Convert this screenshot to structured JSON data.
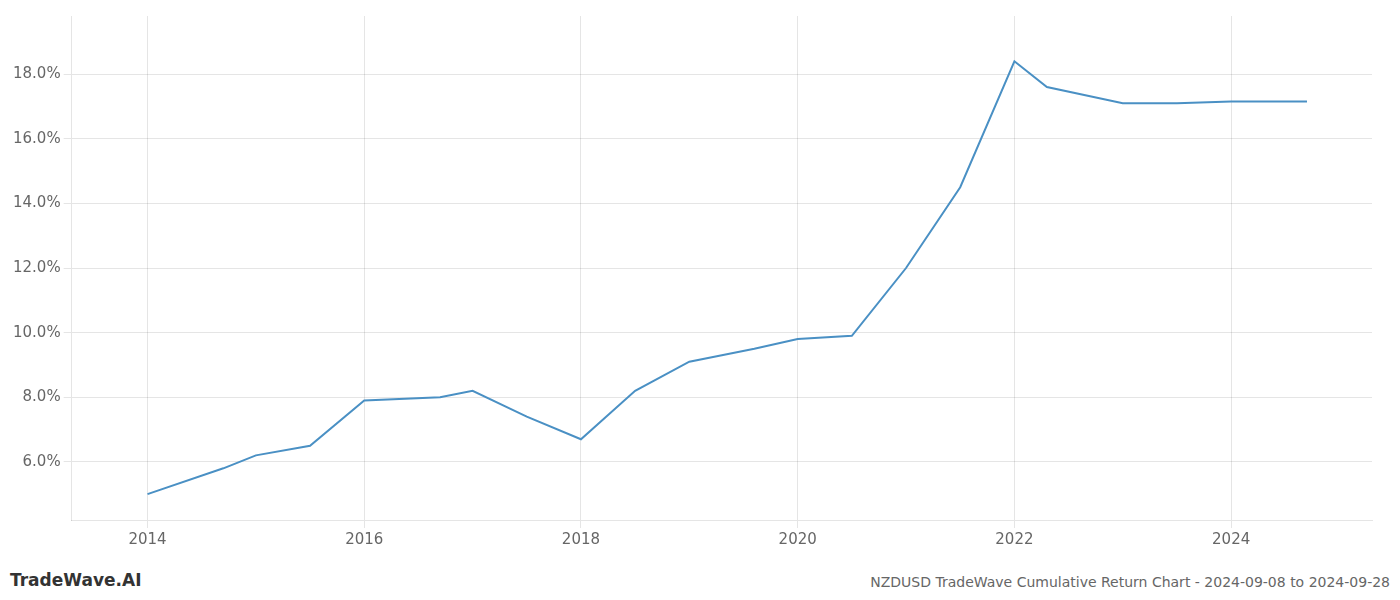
{
  "chart_data": {
    "type": "line",
    "title": "NZDUSD TradeWave Cumulative Return Chart - 2024-09-08 to 2024-09-28",
    "annotations": [
      "TradeWave.AI"
    ],
    "x": [
      2014.0,
      2014.7,
      2015.0,
      2015.5,
      2016.0,
      2016.7,
      2017.0,
      2017.5,
      2018.0,
      2018.5,
      2019.0,
      2019.3,
      2019.6,
      2020.0,
      2020.5,
      2021.0,
      2021.5,
      2022.0,
      2022.3,
      2023.0,
      2023.5,
      2024.0,
      2024.7
    ],
    "values": [
      5.0,
      5.8,
      6.2,
      6.5,
      7.9,
      8.0,
      8.2,
      7.4,
      6.7,
      8.2,
      9.1,
      9.3,
      9.5,
      9.8,
      9.9,
      12.0,
      14.5,
      18.4,
      17.6,
      17.1,
      17.1,
      17.15,
      17.15
    ],
    "color": "#4a90c4",
    "xlim": [
      2013.3,
      2025.3
    ],
    "ylim": [
      4.2,
      19.8
    ],
    "xticks": [
      2014,
      2016,
      2018,
      2020,
      2022,
      2024
    ],
    "yticks": [
      {
        "value": 6.0,
        "label": "6.0%"
      },
      {
        "value": 8.0,
        "label": "8.0%"
      },
      {
        "value": 10.0,
        "label": "10.0%"
      },
      {
        "value": 12.0,
        "label": "12.0%"
      },
      {
        "value": 14.0,
        "label": "14.0%"
      },
      {
        "value": 16.0,
        "label": "16.0%"
      },
      {
        "value": 18.0,
        "label": "18.0%"
      }
    ],
    "grid": true
  }
}
